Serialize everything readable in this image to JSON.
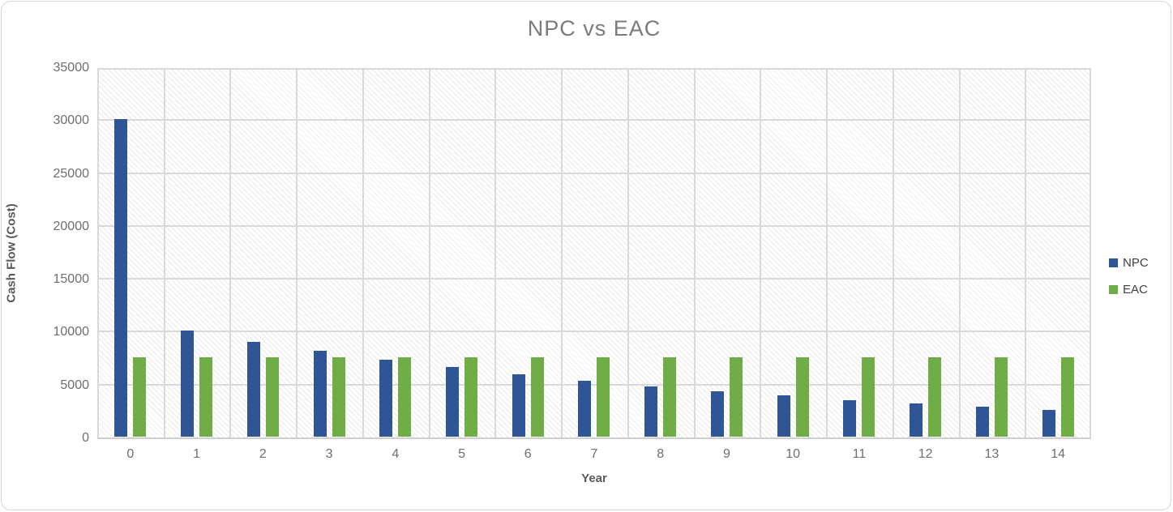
{
  "colors": {
    "npc_bar": "#2F5597",
    "eac_bar": "#70AD47",
    "gridline": "#D9D9D9",
    "title_text": "#7B7B7B",
    "tick_text": "#6E6E6E",
    "axis_title_text": "#595959",
    "legend_text": "#404040",
    "frame_border": "#D6D6D6"
  },
  "legend": {
    "position": "right",
    "items": [
      {
        "label": "NPC",
        "color": "#2F5597"
      },
      {
        "label": "EAC",
        "color": "#70AD47"
      }
    ]
  },
  "chart_data": {
    "type": "bar",
    "title": "NPC vs EAC",
    "xlabel": "Year",
    "ylabel": "Cash Flow (Cost)",
    "categories": [
      "0",
      "1",
      "2",
      "3",
      "4",
      "5",
      "6",
      "7",
      "8",
      "9",
      "10",
      "11",
      "12",
      "13",
      "14"
    ],
    "series": [
      {
        "name": "NPC",
        "color": "#2F5597",
        "values": [
          30000,
          10000,
          9000,
          8100,
          7290,
          6561,
          5905,
          5314,
          4783,
          4305,
          3874,
          3487,
          3138,
          2824,
          2542
        ]
      },
      {
        "name": "EAC",
        "color": "#70AD47",
        "values": [
          7500,
          7500,
          7500,
          7500,
          7500,
          7500,
          7500,
          7500,
          7500,
          7500,
          7500,
          7500,
          7500,
          7500,
          7500
        ]
      }
    ],
    "ylim": [
      0,
      35000
    ],
    "ytick_interval": 5000,
    "y_ticks": [
      0,
      5000,
      10000,
      15000,
      20000,
      25000,
      30000,
      35000
    ],
    "grid": true,
    "plot_background_pattern": "light-downward-diagonal-hatch",
    "legend_position": "right"
  }
}
